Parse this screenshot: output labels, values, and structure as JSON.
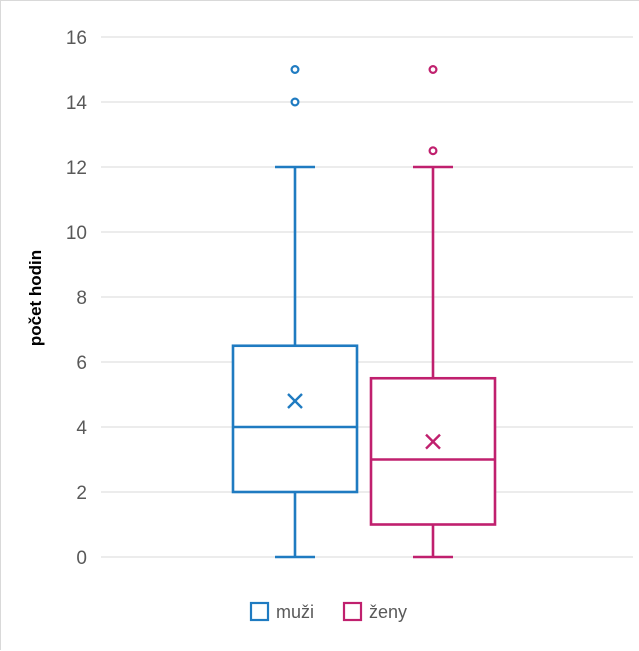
{
  "chart_data": {
    "type": "boxplot",
    "ylabel": "počet hodin",
    "ylim": [
      0,
      16
    ],
    "yticks": [
      0,
      2,
      4,
      6,
      8,
      10,
      12,
      14,
      16
    ],
    "grid": true,
    "legend_position": "bottom",
    "series": [
      {
        "name": "muži",
        "color": "#1f7bc1",
        "min": 0,
        "q1": 2,
        "median": 4,
        "q3": 6.5,
        "max": 12,
        "mean": 4.8,
        "outliers": [
          14,
          15
        ]
      },
      {
        "name": "ženy",
        "color": "#c0206e",
        "min": 0,
        "q1": 1,
        "median": 3,
        "q3": 5.5,
        "max": 12,
        "mean": 3.55,
        "outliers": [
          12.5,
          15
        ]
      }
    ]
  }
}
